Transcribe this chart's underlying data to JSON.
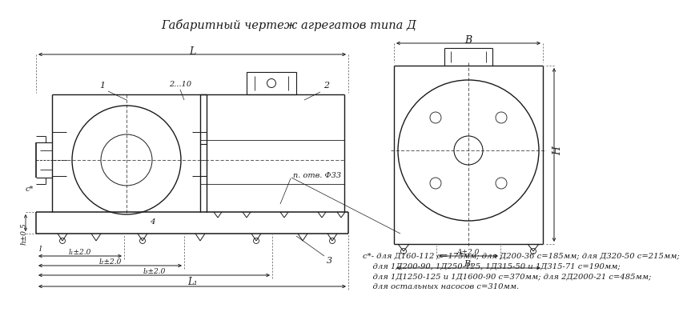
{
  "title": "Габаритный чертеж агрегатов типа Д",
  "title_fontsize": 10.5,
  "note_lines": [
    "с*- для Д160-112 с=175мм; для Д200-36 с=185мм; для Д320-50 с=215мм;",
    "    для 1Д200-90, 1Д250-125, 1Д315-50 и 1Д315-71 с=190мм;",
    "    для 1Д1250-125 и 1Д1600-90 с=370мм; для 2Д2000-21 с=485мм;",
    "    для остальных насосов с=310мм."
  ],
  "note_fontsize": 7.2,
  "bg_color": "#ffffff",
  "line_color": "#1a1a1a"
}
